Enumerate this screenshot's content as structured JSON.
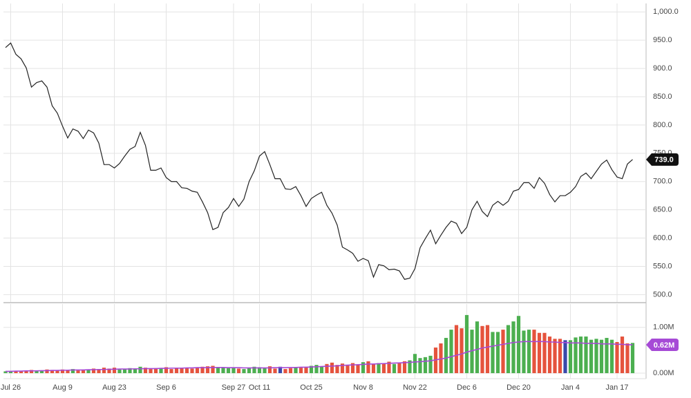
{
  "chart_data": [
    {
      "type": "line",
      "color": "#222222",
      "grid": true,
      "categories": [
        null,
        "Jul 26",
        null,
        null,
        null,
        null,
        null,
        null,
        null,
        null,
        null,
        "Aug 9",
        null,
        null,
        null,
        null,
        null,
        null,
        null,
        null,
        null,
        "Aug 23",
        null,
        null,
        null,
        null,
        null,
        null,
        null,
        null,
        null,
        "Sep 6",
        null,
        null,
        null,
        null,
        null,
        null,
        null,
        null,
        null,
        null,
        null,
        null,
        "Sep 27",
        null,
        null,
        null,
        null,
        "Oct 11",
        null,
        null,
        null,
        null,
        null,
        null,
        null,
        null,
        null,
        "Oct 25",
        null,
        null,
        null,
        null,
        null,
        null,
        null,
        null,
        null,
        "Nov 8",
        null,
        null,
        null,
        null,
        null,
        null,
        null,
        null,
        null,
        "Nov 22",
        null,
        null,
        null,
        null,
        null,
        null,
        null,
        null,
        null,
        "Dec 6",
        null,
        null,
        null,
        null,
        null,
        null,
        null,
        null,
        null,
        "Dec 20",
        null,
        null,
        null,
        null,
        null,
        null,
        null,
        null,
        null,
        "Jan 4",
        null,
        null,
        null,
        null,
        null,
        null,
        null,
        null,
        "Jan 17",
        null,
        null,
        null
      ],
      "values": [
        937,
        945,
        925,
        917,
        901,
        867,
        875,
        878,
        867,
        834,
        821,
        798,
        777,
        793,
        789,
        776,
        791,
        786,
        768,
        730,
        730,
        724,
        732,
        745,
        757,
        762,
        787,
        764,
        720,
        720,
        724,
        707,
        700,
        700,
        689,
        688,
        683,
        681,
        664,
        645,
        615,
        619,
        645,
        654,
        670,
        656,
        669,
        700,
        719,
        745,
        753,
        730,
        705,
        705,
        687,
        686,
        691,
        675,
        656,
        670,
        676,
        681,
        658,
        644,
        623,
        584,
        579,
        573,
        559,
        564,
        560,
        531,
        553,
        551,
        544,
        545,
        542,
        527,
        529,
        546,
        583,
        599,
        614,
        590,
        605,
        619,
        630,
        626,
        608,
        619,
        650,
        665,
        647,
        638,
        658,
        665,
        658,
        665,
        683,
        686,
        698,
        698,
        688,
        707,
        697,
        677,
        664,
        675,
        675,
        681,
        691,
        709,
        715,
        705,
        718,
        731,
        738,
        721,
        708,
        705,
        731,
        739
      ],
      "last_label": "739.0",
      "label_color": "#111111",
      "ylim": [
        487,
        1015
      ],
      "yticks": [
        {
          "value": 1000,
          "label": "1,000.0"
        },
        {
          "value": 950,
          "label": "950.0"
        },
        {
          "value": 900,
          "label": "900.0"
        },
        {
          "value": 850,
          "label": "850.0"
        },
        {
          "value": 800,
          "label": "800.0"
        },
        {
          "value": 750,
          "label": "750.0"
        },
        {
          "value": 700,
          "label": "700.0"
        },
        {
          "value": 650,
          "label": "650.0"
        },
        {
          "value": 600,
          "label": "600.0"
        },
        {
          "value": 550,
          "label": "550.0"
        },
        {
          "value": 500,
          "label": "500.0"
        }
      ]
    },
    {
      "type": "bar",
      "grid": true,
      "series": [
        {
          "type": "bar",
          "values": [
            0.04,
            0.05,
            0.05,
            0.04,
            0.06,
            0.07,
            0.05,
            0.06,
            0.08,
            0.07,
            0.06,
            0.08,
            0.07,
            0.09,
            0.06,
            0.08,
            0.07,
            0.1,
            0.09,
            0.12,
            0.1,
            0.12,
            0.08,
            0.09,
            0.11,
            0.1,
            0.14,
            0.12,
            0.09,
            0.11,
            0.1,
            0.13,
            0.09,
            0.1,
            0.11,
            0.12,
            0.1,
            0.13,
            0.14,
            0.15,
            0.16,
            0.13,
            0.12,
            0.11,
            0.12,
            0.1,
            0.09,
            0.11,
            0.14,
            0.13,
            0.12,
            0.15,
            0.1,
            0.14,
            0.09,
            0.11,
            0.13,
            0.12,
            0.14,
            0.16,
            0.18,
            0.15,
            0.2,
            0.23,
            0.18,
            0.21,
            0.17,
            0.22,
            0.19,
            0.24,
            0.26,
            0.2,
            0.22,
            0.21,
            0.25,
            0.2,
            0.23,
            0.26,
            0.28,
            0.42,
            0.33,
            0.35,
            0.38,
            0.56,
            0.65,
            0.77,
            0.95,
            1.05,
            0.98,
            1.27,
            0.95,
            1.13,
            1.03,
            1.05,
            0.9,
            0.9,
            0.95,
            1.05,
            1.13,
            1.25,
            0.93,
            0.95,
            0.95,
            0.88,
            0.88,
            0.8,
            0.75,
            0.75,
            0.72,
            0.72,
            0.78,
            0.8,
            0.8,
            0.73,
            0.75,
            0.73,
            0.77,
            0.73,
            0.68,
            0.8,
            0.65,
            0.66
          ],
          "colors": [
            "#4caf50",
            "#4caf50",
            "#e5533d",
            "#e5533d",
            "#e5533d",
            "#e5533d",
            "#4caf50",
            "#4caf50",
            "#e5533d",
            "#e5533d",
            "#e5533d",
            "#e5533d",
            "#e5533d",
            "#4caf50",
            "#e5533d",
            "#e5533d",
            "#4caf50",
            "#e5533d",
            "#e5533d",
            "#e5533d",
            "#e5533d",
            "#e5533d",
            "#4caf50",
            "#4caf50",
            "#4caf50",
            "#4caf50",
            "#4caf50",
            "#e5533d",
            "#e5533d",
            "#e5533d",
            "#4caf50",
            "#e5533d",
            "#e5533d",
            "#e5533d",
            "#e5533d",
            "#e5533d",
            "#e5533d",
            "#e5533d",
            "#e5533d",
            "#e5533d",
            "#e5533d",
            "#4caf50",
            "#4caf50",
            "#4caf50",
            "#4caf50",
            "#e5533d",
            "#4caf50",
            "#4caf50",
            "#4caf50",
            "#4caf50",
            "#4caf50",
            "#e5533d",
            "#e5533d",
            "#3949ab",
            "#e5533d",
            "#e5533d",
            "#4caf50",
            "#e5533d",
            "#e5533d",
            "#4caf50",
            "#4caf50",
            "#4caf50",
            "#e5533d",
            "#e5533d",
            "#e5533d",
            "#e5533d",
            "#e5533d",
            "#e5533d",
            "#e5533d",
            "#4caf50",
            "#e5533d",
            "#e5533d",
            "#4caf50",
            "#e5533d",
            "#e5533d",
            "#4caf50",
            "#e5533d",
            "#e5533d",
            "#4caf50",
            "#4caf50",
            "#4caf50",
            "#4caf50",
            "#4caf50",
            "#e5533d",
            "#e5533d",
            "#4caf50",
            "#4caf50",
            "#e5533d",
            "#e5533d",
            "#4caf50",
            "#4caf50",
            "#4caf50",
            "#e5533d",
            "#e5533d",
            "#4caf50",
            "#4caf50",
            "#e5533d",
            "#4caf50",
            "#4caf50",
            "#4caf50",
            "#4caf50",
            "#4caf50",
            "#e5533d",
            "#e5533d",
            "#e5533d",
            "#e5533d",
            "#e5533d",
            "#e5533d",
            "#3949ab",
            "#4caf50",
            "#4caf50",
            "#4caf50",
            "#4caf50",
            "#4caf50",
            "#4caf50",
            "#4caf50",
            "#4caf50",
            "#4caf50",
            "#e5533d",
            "#e5533d",
            "#e5533d",
            "#4caf50",
            "#4caf50"
          ]
        },
        {
          "type": "line",
          "color": "#a64ad6",
          "values": [
            0.04,
            0.04,
            0.045,
            0.045,
            0.05,
            0.05,
            0.05,
            0.055,
            0.055,
            0.06,
            0.06,
            0.065,
            0.065,
            0.07,
            0.07,
            0.07,
            0.075,
            0.075,
            0.08,
            0.08,
            0.085,
            0.085,
            0.09,
            0.09,
            0.09,
            0.095,
            0.095,
            0.1,
            0.1,
            0.1,
            0.105,
            0.105,
            0.11,
            0.11,
            0.11,
            0.115,
            0.115,
            0.12,
            0.12,
            0.12,
            0.125,
            0.125,
            0.125,
            0.12,
            0.12,
            0.12,
            0.115,
            0.115,
            0.115,
            0.115,
            0.115,
            0.115,
            0.12,
            0.12,
            0.12,
            0.125,
            0.125,
            0.13,
            0.13,
            0.135,
            0.14,
            0.145,
            0.15,
            0.155,
            0.16,
            0.17,
            0.175,
            0.18,
            0.185,
            0.19,
            0.2,
            0.2,
            0.205,
            0.21,
            0.215,
            0.22,
            0.225,
            0.23,
            0.235,
            0.245,
            0.25,
            0.26,
            0.27,
            0.29,
            0.31,
            0.33,
            0.36,
            0.39,
            0.42,
            0.46,
            0.49,
            0.52,
            0.55,
            0.57,
            0.59,
            0.61,
            0.63,
            0.65,
            0.67,
            0.68,
            0.69,
            0.69,
            0.69,
            0.69,
            0.69,
            0.68,
            0.68,
            0.67,
            0.67,
            0.66,
            0.66,
            0.66,
            0.65,
            0.65,
            0.65,
            0.64,
            0.64,
            0.64,
            0.63,
            0.63,
            0.62,
            0.62
          ],
          "last_label": "0.62M"
        }
      ],
      "ylim": [
        -0.12,
        1.51
      ],
      "yticks": [
        {
          "value": 1,
          "label": "1.00M"
        },
        {
          "value": 0,
          "label": "0.00M"
        }
      ]
    }
  ]
}
